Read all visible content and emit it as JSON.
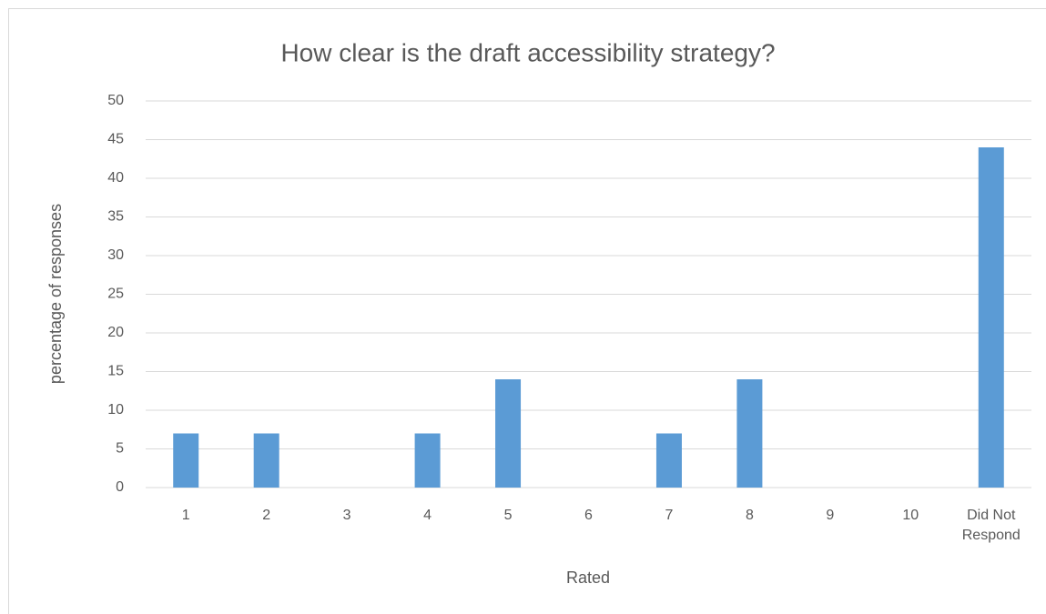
{
  "chart_data": {
    "type": "bar",
    "title": "How clear is the draft accessibility strategy?",
    "x_label": "Rated",
    "y_label": "percentage of responses",
    "categories": [
      "1",
      "2",
      "3",
      "4",
      "5",
      "6",
      "7",
      "8",
      "9",
      "10",
      "Did Not Respond"
    ],
    "values": [
      7,
      7,
      0,
      7,
      14,
      0,
      7,
      14,
      0,
      0,
      44
    ],
    "color": "#5b9bd5",
    "ylim": [
      0,
      50
    ],
    "yticks": [
      0,
      5,
      10,
      15,
      20,
      25,
      30,
      35,
      40,
      45,
      50
    ],
    "grid": true
  }
}
